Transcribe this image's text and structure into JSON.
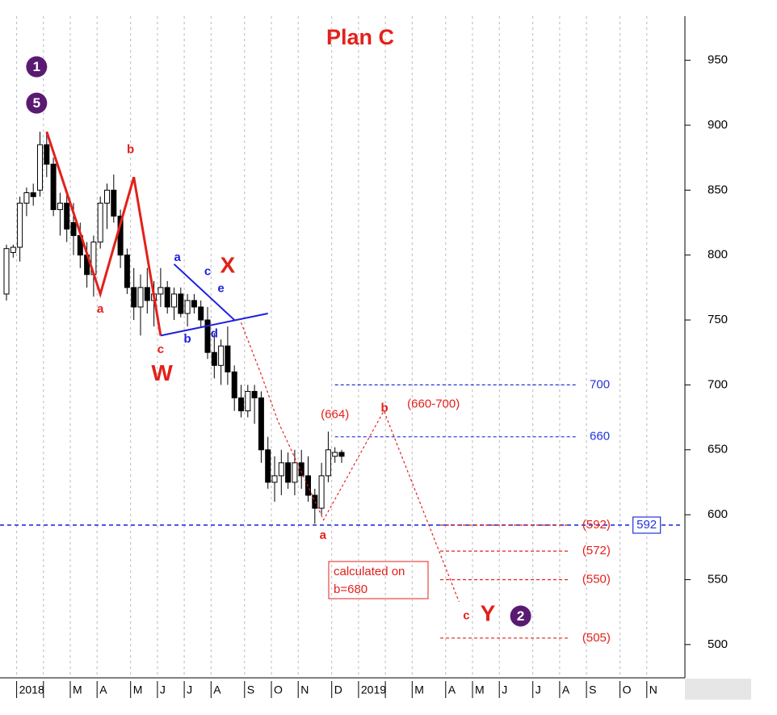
{
  "chart_data": {
    "type": "candlestick",
    "title": "Plan C",
    "categories": [
      null,
      null,
      "2018",
      null,
      null,
      null,
      null,
      null,
      null,
      null,
      "M",
      null,
      null,
      null,
      "A",
      null,
      null,
      null,
      null,
      "M",
      null,
      null,
      null,
      "J",
      null,
      null,
      null,
      "J",
      null,
      null,
      null,
      "A",
      null,
      null,
      null,
      null,
      "S",
      null,
      null,
      null,
      "O",
      null,
      null,
      null,
      "N",
      null,
      null,
      null,
      null,
      "D",
      null,
      null,
      null,
      "2019",
      null,
      null,
      null,
      null,
      null,
      null,
      null,
      "M",
      null,
      null,
      null,
      null,
      "A",
      null,
      null,
      null,
      "M",
      null,
      null,
      null,
      "J",
      null,
      null,
      null,
      null,
      "J",
      null,
      null,
      null,
      "A",
      null,
      null,
      null,
      "S",
      null,
      null,
      null,
      null,
      "O",
      null,
      null,
      null,
      "N",
      null,
      null,
      null,
      null
    ],
    "open": [
      770,
      802,
      806,
      840,
      848,
      850,
      885,
      870,
      835,
      840,
      825,
      815,
      800,
      785,
      810,
      840,
      850,
      830,
      800,
      775,
      760,
      775,
      765,
      770,
      775,
      760,
      770,
      755,
      765,
      760,
      750,
      725,
      715,
      730,
      710,
      690,
      680,
      695,
      690,
      650,
      625,
      630,
      640,
      625,
      640,
      630,
      615,
      605,
      630,
      645,
      648,
      null,
      null,
      null,
      null,
      null,
      null,
      null,
      null,
      null,
      null,
      null,
      null,
      null,
      null,
      null,
      null,
      null,
      null,
      null,
      null,
      null,
      null,
      null,
      null,
      null,
      null,
      null,
      null,
      null,
      null,
      null,
      null,
      null,
      null,
      null,
      null,
      null,
      null,
      null,
      null,
      null,
      null,
      null,
      null,
      null,
      null,
      null,
      null,
      null,
      null
    ],
    "high": [
      808,
      808,
      845,
      852,
      855,
      895,
      895,
      875,
      848,
      850,
      840,
      825,
      810,
      815,
      845,
      855,
      862,
      835,
      805,
      790,
      785,
      790,
      780,
      790,
      780,
      775,
      775,
      770,
      770,
      765,
      760,
      740,
      735,
      745,
      715,
      700,
      700,
      700,
      695,
      660,
      645,
      650,
      648,
      650,
      650,
      645,
      620,
      640,
      664,
      652,
      650,
      null,
      null,
      null,
      null,
      null,
      null,
      null,
      null,
      null,
      null,
      null,
      null,
      null,
      null,
      null,
      null,
      null,
      null,
      null,
      null,
      null,
      null,
      null,
      null,
      null,
      null,
      null,
      null,
      null,
      null,
      null,
      null,
      null,
      null,
      null,
      null,
      null,
      null,
      null,
      null,
      null,
      null,
      null,
      null,
      null,
      null,
      null,
      null,
      null,
      null
    ],
    "low": [
      765,
      798,
      795,
      830,
      838,
      845,
      860,
      830,
      815,
      810,
      800,
      790,
      775,
      768,
      805,
      820,
      825,
      790,
      770,
      750,
      738,
      755,
      745,
      760,
      755,
      750,
      752,
      745,
      755,
      745,
      720,
      705,
      700,
      700,
      680,
      675,
      675,
      670,
      640,
      620,
      610,
      615,
      620,
      615,
      620,
      610,
      593,
      600,
      625,
      640,
      640,
      null,
      null,
      null,
      null,
      null,
      null,
      null,
      null,
      null,
      null,
      null,
      null,
      null,
      null,
      null,
      null,
      null,
      null,
      null,
      null,
      null,
      null,
      null,
      null,
      null,
      null,
      null,
      null,
      null,
      null,
      null,
      null,
      null,
      null,
      null,
      null,
      null,
      null,
      null,
      null,
      null,
      null,
      null,
      null,
      null,
      null,
      null,
      null,
      null,
      null
    ],
    "close": [
      805,
      806,
      840,
      848,
      845,
      885,
      870,
      835,
      840,
      820,
      815,
      800,
      785,
      810,
      840,
      850,
      830,
      800,
      775,
      760,
      775,
      765,
      770,
      775,
      760,
      770,
      755,
      765,
      760,
      750,
      725,
      715,
      730,
      710,
      690,
      680,
      695,
      690,
      650,
      625,
      630,
      640,
      625,
      640,
      630,
      615,
      605,
      630,
      650,
      648,
      645,
      null,
      null,
      null,
      null,
      null,
      null,
      null,
      null,
      null,
      null,
      null,
      null,
      null,
      null,
      null,
      null,
      null,
      null,
      null,
      null,
      null,
      null,
      null,
      null,
      null,
      null,
      null,
      null,
      null,
      null,
      null,
      null,
      null,
      null,
      null,
      null,
      null,
      null,
      null,
      null,
      null,
      null,
      null,
      null,
      null,
      null,
      null,
      null,
      null,
      null
    ],
    "ylim": [
      475,
      984
    ],
    "yticks": [
      500,
      550,
      600,
      650,
      700,
      750,
      800,
      850,
      900,
      950
    ],
    "grid": true,
    "lines": [
      {
        "color": "#e3201b",
        "style": "solid",
        "width": 3,
        "points": [
          [
            6,
            895
          ],
          [
            14,
            770
          ],
          [
            19,
            860
          ],
          [
            23,
            738
          ]
        ]
      },
      {
        "color": "#1f1fe0",
        "style": "solid",
        "width": 2,
        "points": [
          [
            25,
            793
          ],
          [
            34,
            750
          ]
        ]
      },
      {
        "color": "#1f1fe0",
        "style": "solid",
        "width": 2,
        "points": [
          [
            23,
            738
          ],
          [
            39,
            755
          ]
        ]
      },
      {
        "color": "#e3201b",
        "style": "dashed",
        "width": 1.2,
        "points": [
          [
            35,
            748
          ],
          [
            38,
            708
          ],
          [
            40.5,
            672
          ],
          [
            47.3,
            596
          ],
          [
            56.3,
            680
          ],
          [
            67.5,
            533
          ]
        ]
      }
    ],
    "levels": [
      {
        "value": 700,
        "label": "700",
        "color": "#2233dd",
        "from": 49,
        "to": 85,
        "label_at": 88.5,
        "boxed": false
      },
      {
        "value": 660,
        "label": "660",
        "color": "#2233dd",
        "from": 49,
        "to": 85,
        "label_at": 88.5,
        "boxed": false
      },
      {
        "value": 592,
        "label": "592",
        "color": "#2233dd",
        "from": -1,
        "to": 100.5,
        "label_at": 95.5,
        "boxed": true
      },
      {
        "value": 592,
        "label": "(592)",
        "color": "#e3201b",
        "from": 64.7,
        "to": 84,
        "label_at": 88,
        "boxed": false
      },
      {
        "value": 572,
        "label": "(572)",
        "color": "#e3201b",
        "from": 64.7,
        "to": 84,
        "label_at": 88,
        "boxed": false
      },
      {
        "value": 550,
        "label": "(550)",
        "color": "#e3201b",
        "from": 64.7,
        "to": 84,
        "label_at": 88,
        "boxed": false
      },
      {
        "value": 505,
        "label": "(505)",
        "color": "#e3201b",
        "from": 64.7,
        "to": 84,
        "label_at": 88,
        "boxed": false
      }
    ],
    "labels": [
      {
        "text": "1",
        "at": [
          4.5,
          945
        ],
        "color": "#5a1a72",
        "size": "circle"
      },
      {
        "text": "5",
        "at": [
          4.5,
          917
        ],
        "color": "#5a1a72",
        "size": "circle"
      },
      {
        "text": "a",
        "at": [
          14,
          758
        ],
        "color": "#e3201b",
        "size": "small"
      },
      {
        "text": "b",
        "at": [
          18.5,
          881
        ],
        "color": "#e3201b",
        "size": "small"
      },
      {
        "text": "c",
        "at": [
          23,
          727
        ],
        "color": "#e3201b",
        "size": "small"
      },
      {
        "text": "W",
        "at": [
          23.2,
          708
        ],
        "color": "#e3201b",
        "size": "big"
      },
      {
        "text": "X",
        "at": [
          33,
          791
        ],
        "color": "#e3201b",
        "size": "big"
      },
      {
        "text": "a",
        "at": [
          25.5,
          798
        ],
        "color": "#1f1fe0",
        "size": "small"
      },
      {
        "text": "b",
        "at": [
          27,
          735
        ],
        "color": "#1f1fe0",
        "size": "small"
      },
      {
        "text": "c",
        "at": [
          30,
          787
        ],
        "color": "#1f1fe0",
        "size": "small"
      },
      {
        "text": "d",
        "at": [
          31,
          739
        ],
        "color": "#1f1fe0",
        "size": "small"
      },
      {
        "text": "e",
        "at": [
          32,
          774
        ],
        "color": "#1f1fe0",
        "size": "small"
      },
      {
        "text": "a",
        "at": [
          47.2,
          584
        ],
        "color": "#e3201b",
        "size": "small"
      },
      {
        "text": "(664)",
        "at": [
          49,
          677
        ],
        "color": "#e3201b",
        "size": "plain"
      },
      {
        "text": "b",
        "at": [
          56.4,
          682
        ],
        "color": "#e3201b",
        "size": "small"
      },
      {
        "text": "(660-700)",
        "at": [
          63.7,
          685
        ],
        "color": "#e3201b",
        "size": "plain"
      },
      {
        "text": "c",
        "at": [
          68.6,
          522
        ],
        "color": "#e3201b",
        "size": "small"
      },
      {
        "text": "Y",
        "at": [
          71.8,
          523
        ],
        "color": "#e3201b",
        "size": "big"
      },
      {
        "text": "2",
        "at": [
          76.7,
          522
        ],
        "color": "#5a1a72",
        "size": "circle"
      }
    ],
    "note": [
      "calculated on",
      "b=680"
    ]
  }
}
